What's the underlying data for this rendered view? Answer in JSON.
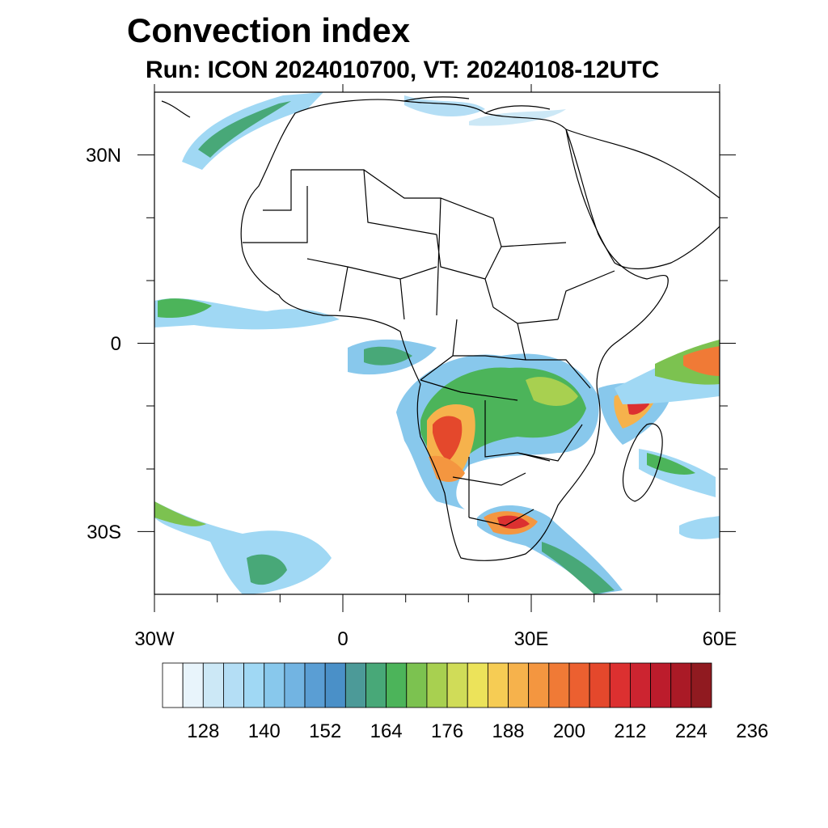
{
  "title": "Convection index",
  "subtitle": "Run: ICON 2024010700,  VT: 20240108-12UTC",
  "map": {
    "region": "Africa",
    "lon_range": [
      -30,
      60
    ],
    "lat_range": [
      -40,
      40
    ],
    "lat_tick_labels": [
      {
        "lat": 30,
        "text": "30N"
      },
      {
        "lat": 0,
        "text": "0"
      },
      {
        "lat": -30,
        "text": "30S"
      }
    ],
    "lon_tick_labels": [
      {
        "lon": -30,
        "text": "30W"
      },
      {
        "lon": 0,
        "text": "0"
      },
      {
        "lon": 30,
        "text": "30E"
      },
      {
        "lon": 60,
        "text": "60E"
      }
    ]
  },
  "colorbar": {
    "colors": [
      "#ffffff",
      "#e8f4fb",
      "#cce8f6",
      "#b4def5",
      "#a0d8f4",
      "#88c8ec",
      "#72b4e2",
      "#5a9ed4",
      "#4a90c8",
      "#4c9a98",
      "#48a878",
      "#4cb45a",
      "#7cc250",
      "#a8d050",
      "#d0dc58",
      "#ece35a",
      "#f6cc54",
      "#f6b24c",
      "#f49640",
      "#f07a36",
      "#ec6030",
      "#e4482c",
      "#dc3030",
      "#cc2430",
      "#bc1c2c",
      "#aa1a26",
      "#901a20"
    ],
    "tick_labels": [
      "128",
      "140",
      "152",
      "164",
      "176",
      "188",
      "200",
      "212",
      "224",
      "236"
    ],
    "tick_values": [
      128,
      140,
      152,
      164,
      176,
      188,
      200,
      212,
      224,
      236
    ]
  }
}
